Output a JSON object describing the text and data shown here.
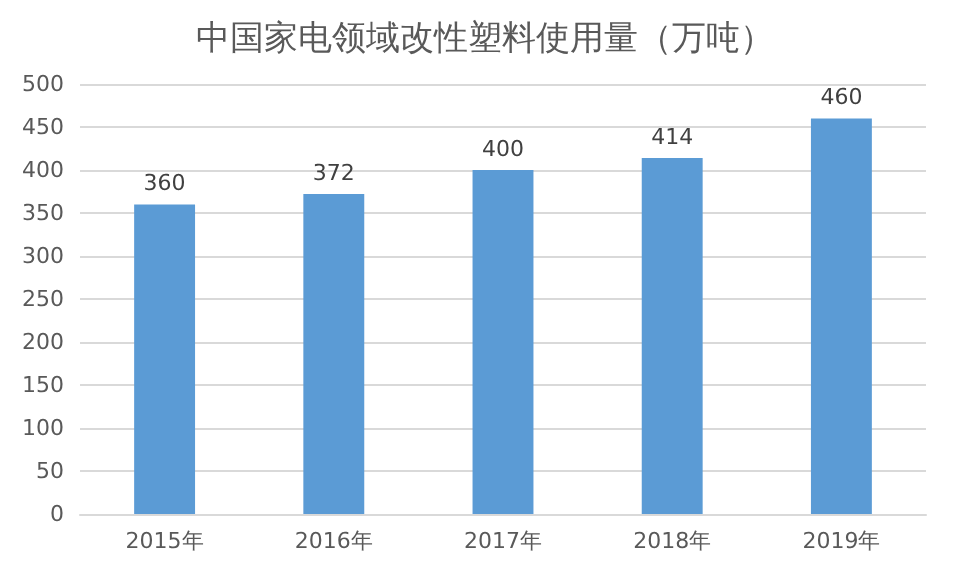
{
  "chart_data": {
    "type": "bar",
    "title": "中国家电领域改性塑料使用量（万吨）",
    "categories": [
      "2015年",
      "2016年",
      "2017年",
      "2018年",
      "2019年"
    ],
    "values": [
      360,
      372,
      400,
      414,
      460
    ],
    "color": "#5b9bd5",
    "ylim": [
      0,
      500
    ],
    "yticks": [
      0,
      50,
      100,
      150,
      200,
      250,
      300,
      350,
      400,
      450,
      500
    ],
    "grid": "y",
    "data_labels": true
  }
}
